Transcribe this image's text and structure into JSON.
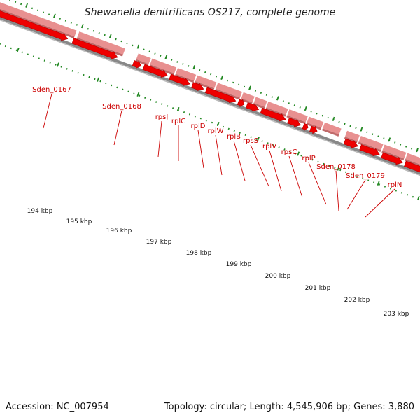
{
  "title": "Shewanella denitrificans OS217, complete genome",
  "footer": {
    "accession": "Accession: NC_007954",
    "summary": "Topology: circular; Length: 4,545,906 bp; Genes: 3,880"
  },
  "colors": {
    "gene_label": "#cc0000",
    "arrow": "#ee0000",
    "block": "#e89090",
    "tick": "#228822",
    "backbone": "#888888"
  },
  "tick_labels": [
    "194 kbp",
    "195 kbp",
    "196 kbp",
    "197 kbp",
    "198 kbp",
    "199 kbp",
    "200 kbp",
    "201 kbp",
    "202 kbp",
    "203 kbp"
  ],
  "gene_labels": [
    "Sden_0167",
    "Sden_0168",
    "rpsJ",
    "rplC",
    "rplD",
    "rplW",
    "rplB",
    "rpsS",
    "rplV",
    "rpsC",
    "rplP",
    "Sden_0178",
    "Sden_0179",
    "rplN"
  ]
}
